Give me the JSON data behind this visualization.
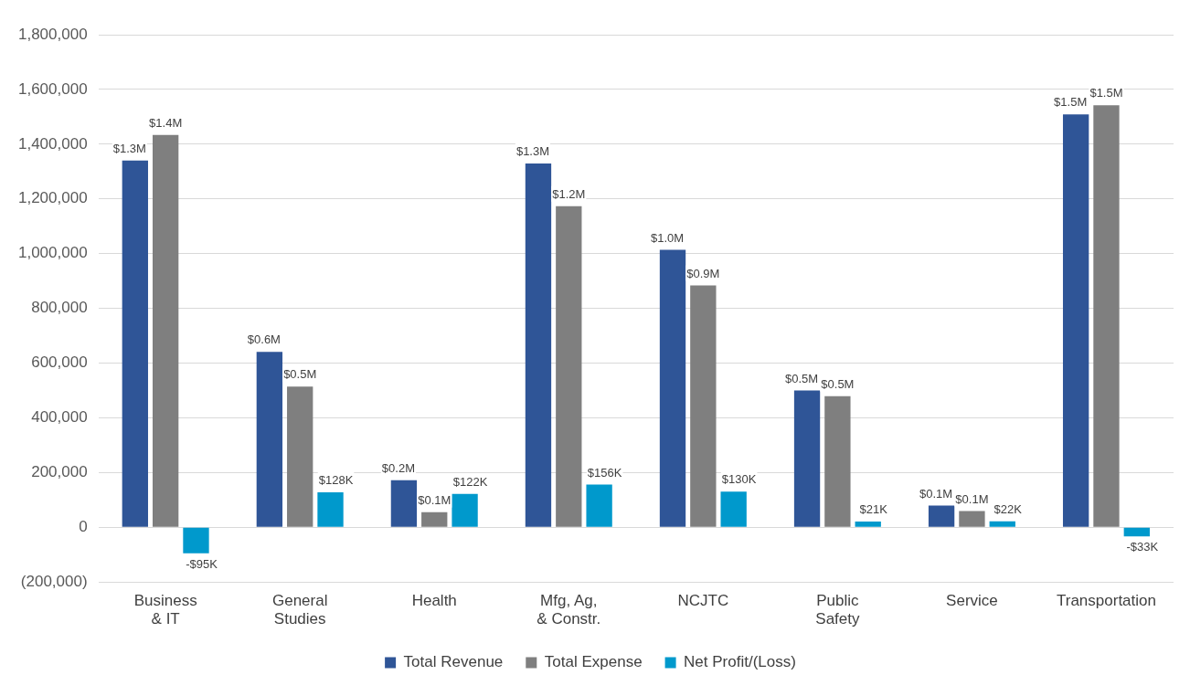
{
  "chart_data": {
    "type": "bar",
    "categories": [
      "Business & IT",
      "General Studies",
      "Health",
      "Mfg, Ag, & Constr.",
      "NCJTC",
      "Public Safety",
      "Service",
      "Transportation"
    ],
    "series": [
      {
        "name": "Total Revenue",
        "color": "#2f5597",
        "values": [
          1340000,
          641000,
          172000,
          1329000,
          1014000,
          500000,
          79000,
          1509000
        ],
        "value_labels": [
          "$1.3M",
          "$0.6M",
          "$0.2M",
          "$1.3M",
          "$1.0M",
          "$0.5M",
          "$0.1M",
          "$1.5M"
        ]
      },
      {
        "name": "Total Expense",
        "color": "#7f7f7f",
        "values": [
          1434000,
          514000,
          55000,
          1173000,
          884000,
          479000,
          59000,
          1542000
        ],
        "value_labels": [
          "$1.4M",
          "$0.5M",
          "$0.1M",
          "$1.2M",
          "$0.9M",
          "$0.5M",
          "$0.1M",
          "$1.5M"
        ]
      },
      {
        "name": "Net Profit/(Loss)",
        "color": "#0099cc",
        "values": [
          -95000,
          128000,
          122000,
          156000,
          130000,
          21000,
          22000,
          -33000
        ],
        "value_labels": [
          "-$95K",
          "$128K",
          "$122K",
          "$156K",
          "$130K",
          "$21K",
          "$22K",
          "-$33K"
        ]
      }
    ],
    "ylim": [
      -200000,
      1800000
    ],
    "yticks": [
      {
        "value": -200000,
        "label": "(200,000)"
      },
      {
        "value": 0,
        "label": "0"
      },
      {
        "value": 200000,
        "label": "200,000"
      },
      {
        "value": 400000,
        "label": "400,000"
      },
      {
        "value": 600000,
        "label": "600,000"
      },
      {
        "value": 800000,
        "label": "800,000"
      },
      {
        "value": 1000000,
        "label": "1,000,000"
      },
      {
        "value": 1200000,
        "label": "1,200,000"
      },
      {
        "value": 1400000,
        "label": "1,400,000"
      },
      {
        "value": 1600000,
        "label": "1,600,000"
      },
      {
        "value": 1800000,
        "label": "1,800,000"
      }
    ],
    "grid": "y",
    "legend": "bottom"
  }
}
